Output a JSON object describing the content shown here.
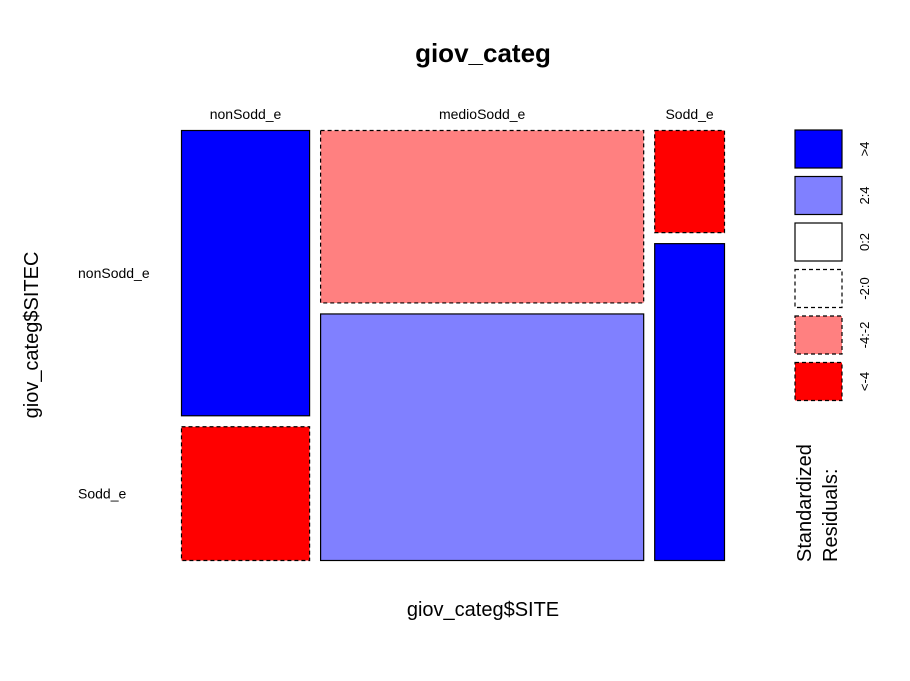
{
  "chart_data": {
    "type": "mosaic",
    "title": "giov_categ",
    "xlabel": "giov_categ$SITE",
    "ylabel": "giov_categ$SITEC",
    "x_categories": [
      "nonSodd_e",
      "medioSodd_e",
      "Sodd_e"
    ],
    "y_categories": [
      "nonSodd_e",
      "Sodd_e"
    ],
    "column_proportions": [
      0.237,
      0.595,
      0.13
    ],
    "cells": [
      {
        "x": "nonSodd_e",
        "y": "nonSodd_e",
        "proportion": 0.68,
        "residual_class": ">4"
      },
      {
        "x": "nonSodd_e",
        "y": "Sodd_e",
        "proportion": 0.32,
        "residual_class": "<-4"
      },
      {
        "x": "medioSodd_e",
        "y": "nonSodd_e",
        "proportion": 0.412,
        "residual_class": "-4:-2"
      },
      {
        "x": "medioSodd_e",
        "y": "Sodd_e",
        "proportion": 0.588,
        "residual_class": "2:4"
      },
      {
        "x": "Sodd_e",
        "y": "nonSodd_e",
        "proportion": 0.245,
        "residual_class": "<-4"
      },
      {
        "x": "Sodd_e",
        "y": "Sodd_e",
        "proportion": 0.755,
        "residual_class": ">4"
      }
    ],
    "legend": {
      "title_lines": [
        "Standardized",
        "Residuals:"
      ],
      "placement": "right",
      "entries": [
        {
          "label": ">4",
          "color": "#0000FF",
          "dashed": false
        },
        {
          "label": "2:4",
          "color": "#8080FF",
          "dashed": false
        },
        {
          "label": "0:2",
          "color": "#FFFFFF",
          "dashed": false
        },
        {
          "label": "-2:0",
          "color": "#FFFFFF",
          "dashed": true
        },
        {
          "label": "-4:-2",
          "color": "#FF8080",
          "dashed": true
        },
        {
          "label": "<-4",
          "color": "#FF0000",
          "dashed": true
        }
      ]
    }
  }
}
